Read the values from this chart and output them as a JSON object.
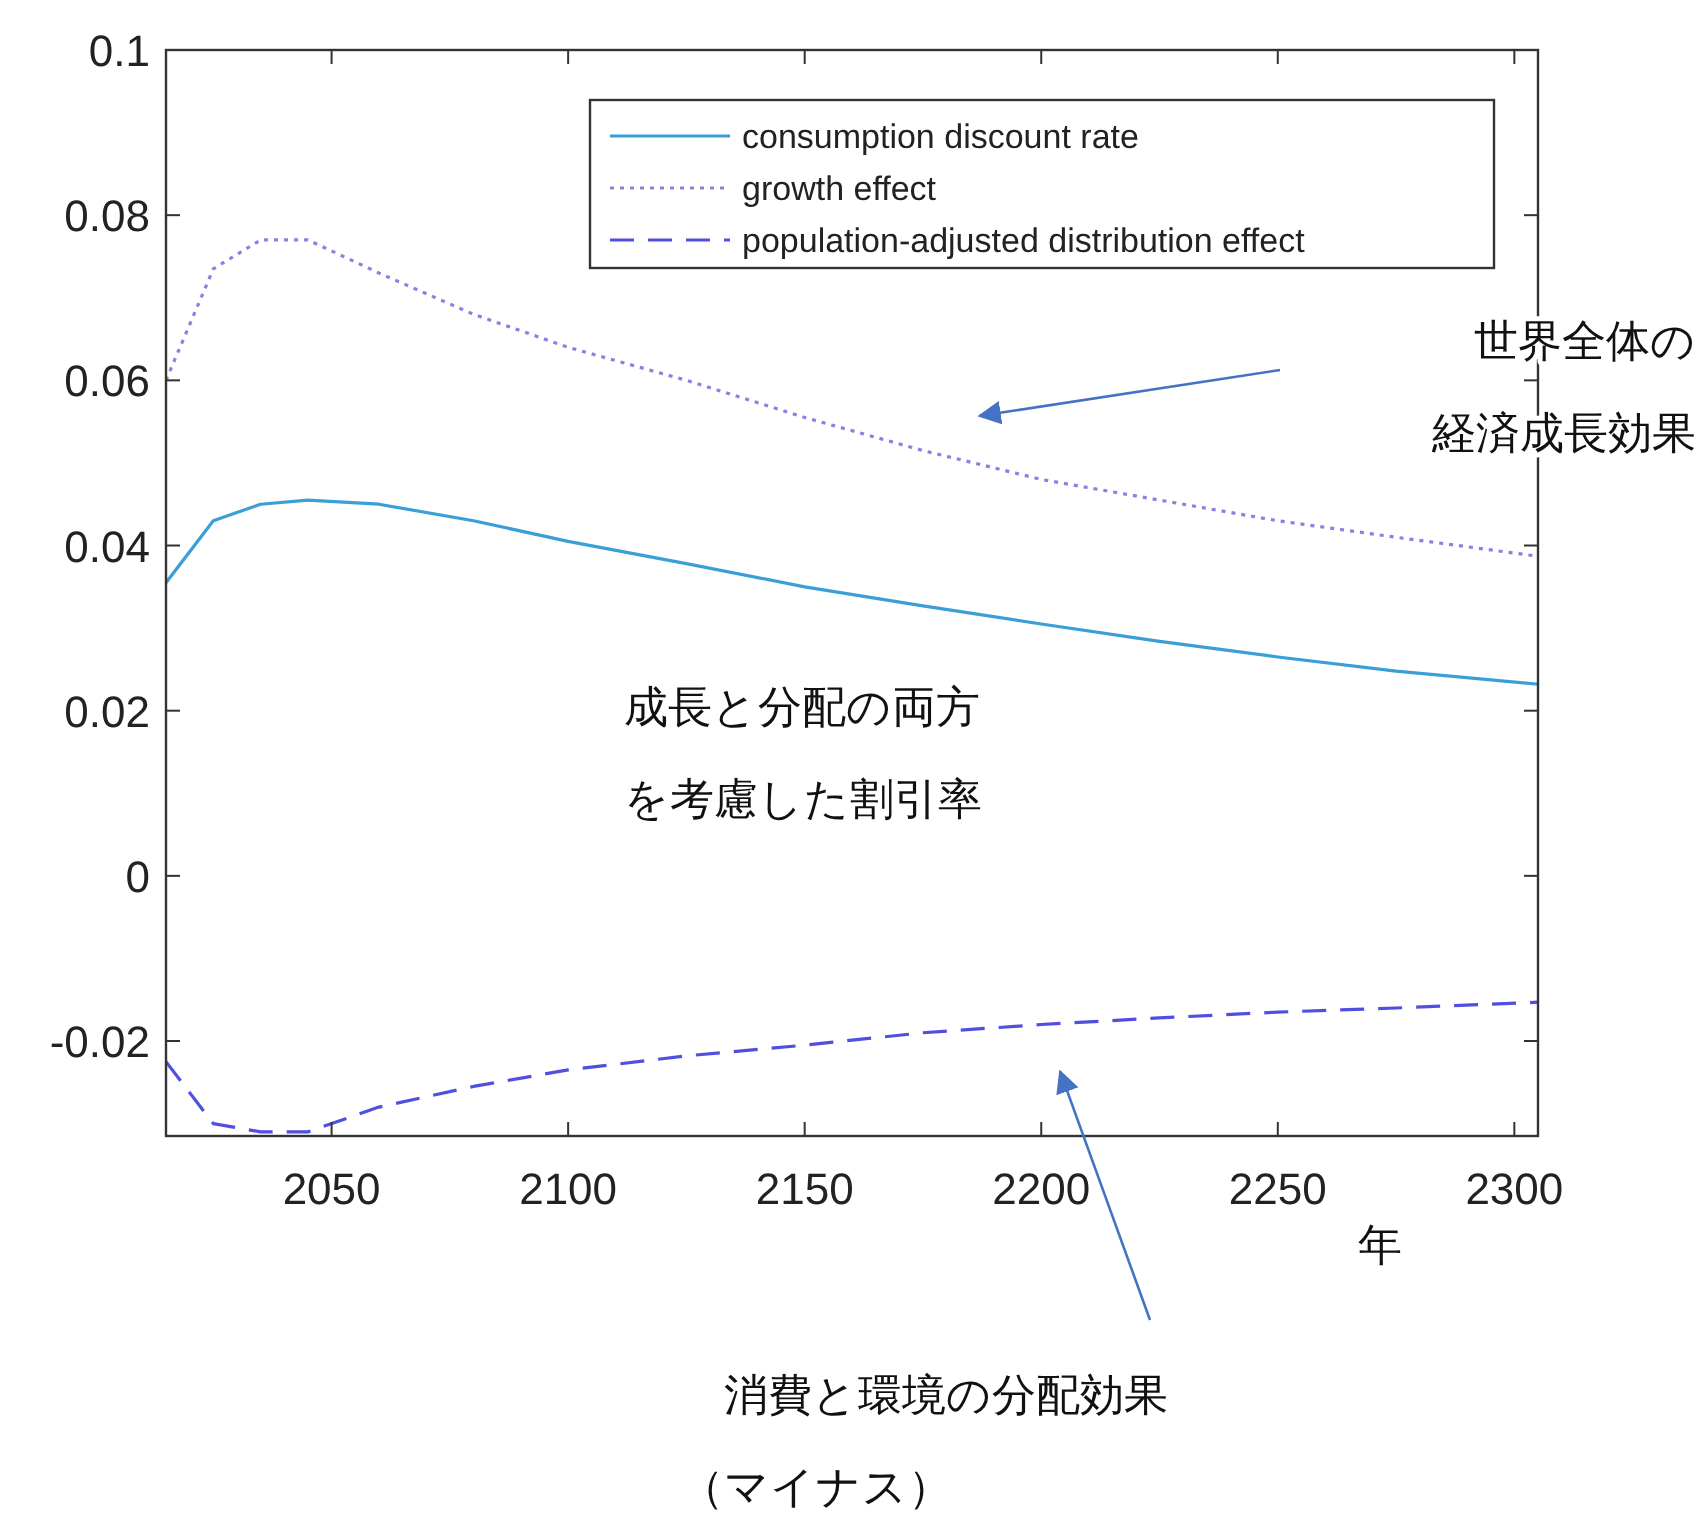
{
  "chart_data": {
    "type": "line",
    "xlabel": "年",
    "x": [
      2015,
      2025,
      2035,
      2045,
      2060,
      2080,
      2100,
      2125,
      2150,
      2175,
      2200,
      2225,
      2250,
      2275,
      2305
    ],
    "series": [
      {
        "name": "consumption discount rate",
        "color": "#3a9fd6",
        "line_style": "solid",
        "values": [
          0.0355,
          0.043,
          0.045,
          0.0455,
          0.045,
          0.043,
          0.0405,
          0.0378,
          0.035,
          0.0327,
          0.0305,
          0.0284,
          0.0265,
          0.0248,
          0.0232
        ]
      },
      {
        "name": "growth effect",
        "color": "#8a80e0",
        "line_style": "dotted",
        "values": [
          0.06,
          0.0735,
          0.077,
          0.077,
          0.073,
          0.068,
          0.064,
          0.06,
          0.0555,
          0.0515,
          0.048,
          0.0455,
          0.043,
          0.041,
          0.0387
        ]
      },
      {
        "name": "population-adjusted distribution effect",
        "color": "#4f4fe0",
        "line_style": "dashed",
        "values": [
          -0.0225,
          -0.03,
          -0.031,
          -0.031,
          -0.028,
          -0.0255,
          -0.0235,
          -0.0218,
          -0.0205,
          -0.019,
          -0.018,
          -0.0172,
          -0.0165,
          -0.016,
          -0.0153
        ]
      }
    ],
    "xlim": [
      2015,
      2305
    ],
    "xticks": [
      2050,
      2100,
      2150,
      2200,
      2250,
      2300
    ],
    "ylim": [
      -0.0315,
      0.1
    ],
    "yticks": [
      -0.02,
      0,
      0.02,
      0.04,
      0.06,
      0.08,
      0.1
    ],
    "grid": false,
    "legend": "top right",
    "marker": "none",
    "annotations": [
      "世界全体の経済成長効果",
      "成長と分配の両方を考慮した割引率",
      "消費と環境の分配効果（マイナス）"
    ]
  }
}
